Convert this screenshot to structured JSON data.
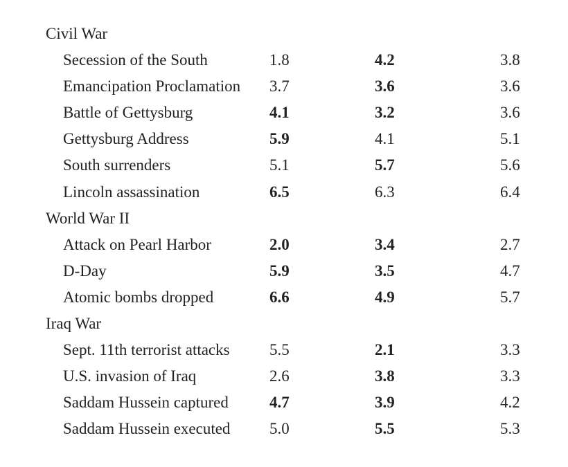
{
  "sections": [
    {
      "title": "Civil War",
      "rows": [
        {
          "event": "Secession of the South",
          "v1": "1.8",
          "v2": "4.2",
          "v3": "3.8",
          "bold": [
            false,
            true,
            false
          ]
        },
        {
          "event": "Emancipation Proclamation",
          "v1": "3.7",
          "v2": "3.6",
          "v3": "3.6",
          "bold": [
            false,
            true,
            false
          ]
        },
        {
          "event": "Battle of Gettysburg",
          "v1": "4.1",
          "v2": "3.2",
          "v3": "3.6",
          "bold": [
            true,
            true,
            false
          ]
        },
        {
          "event": "Gettysburg Address",
          "v1": "5.9",
          "v2": "4.1",
          "v3": "5.1",
          "bold": [
            true,
            false,
            false
          ]
        },
        {
          "event": "South surrenders",
          "v1": "5.1",
          "v2": "5.7",
          "v3": "5.6",
          "bold": [
            false,
            true,
            false
          ]
        },
        {
          "event": "Lincoln assassination",
          "v1": "6.5",
          "v2": "6.3",
          "v3": "6.4",
          "bold": [
            true,
            false,
            false
          ]
        }
      ]
    },
    {
      "title": "World War II",
      "rows": [
        {
          "event": "Attack on Pearl Harbor",
          "v1": "2.0",
          "v2": "3.4",
          "v3": "2.7",
          "bold": [
            true,
            true,
            false
          ]
        },
        {
          "event": "D-Day",
          "v1": "5.9",
          "v2": "3.5",
          "v3": "4.7",
          "bold": [
            true,
            true,
            false
          ]
        },
        {
          "event": "Atomic bombs dropped",
          "v1": "6.6",
          "v2": "4.9",
          "v3": "5.7",
          "bold": [
            true,
            true,
            false
          ]
        }
      ]
    },
    {
      "title": "Iraq War",
      "rows": [
        {
          "event": "Sept. 11th terrorist attacks",
          "v1": "5.5",
          "v2": "2.1",
          "v3": "3.3",
          "bold": [
            false,
            true,
            false
          ]
        },
        {
          "event": "U.S. invasion of Iraq",
          "v1": "2.6",
          "v2": "3.8",
          "v3": "3.3",
          "bold": [
            false,
            true,
            false
          ]
        },
        {
          "event": "Saddam Hussein captured",
          "v1": "4.7",
          "v2": "3.9",
          "v3": "4.2",
          "bold": [
            true,
            true,
            false
          ]
        },
        {
          "event": "Saddam Hussein executed",
          "v1": "5.0",
          "v2": "5.5",
          "v3": "5.3",
          "bold": [
            false,
            true,
            false
          ]
        }
      ]
    }
  ]
}
